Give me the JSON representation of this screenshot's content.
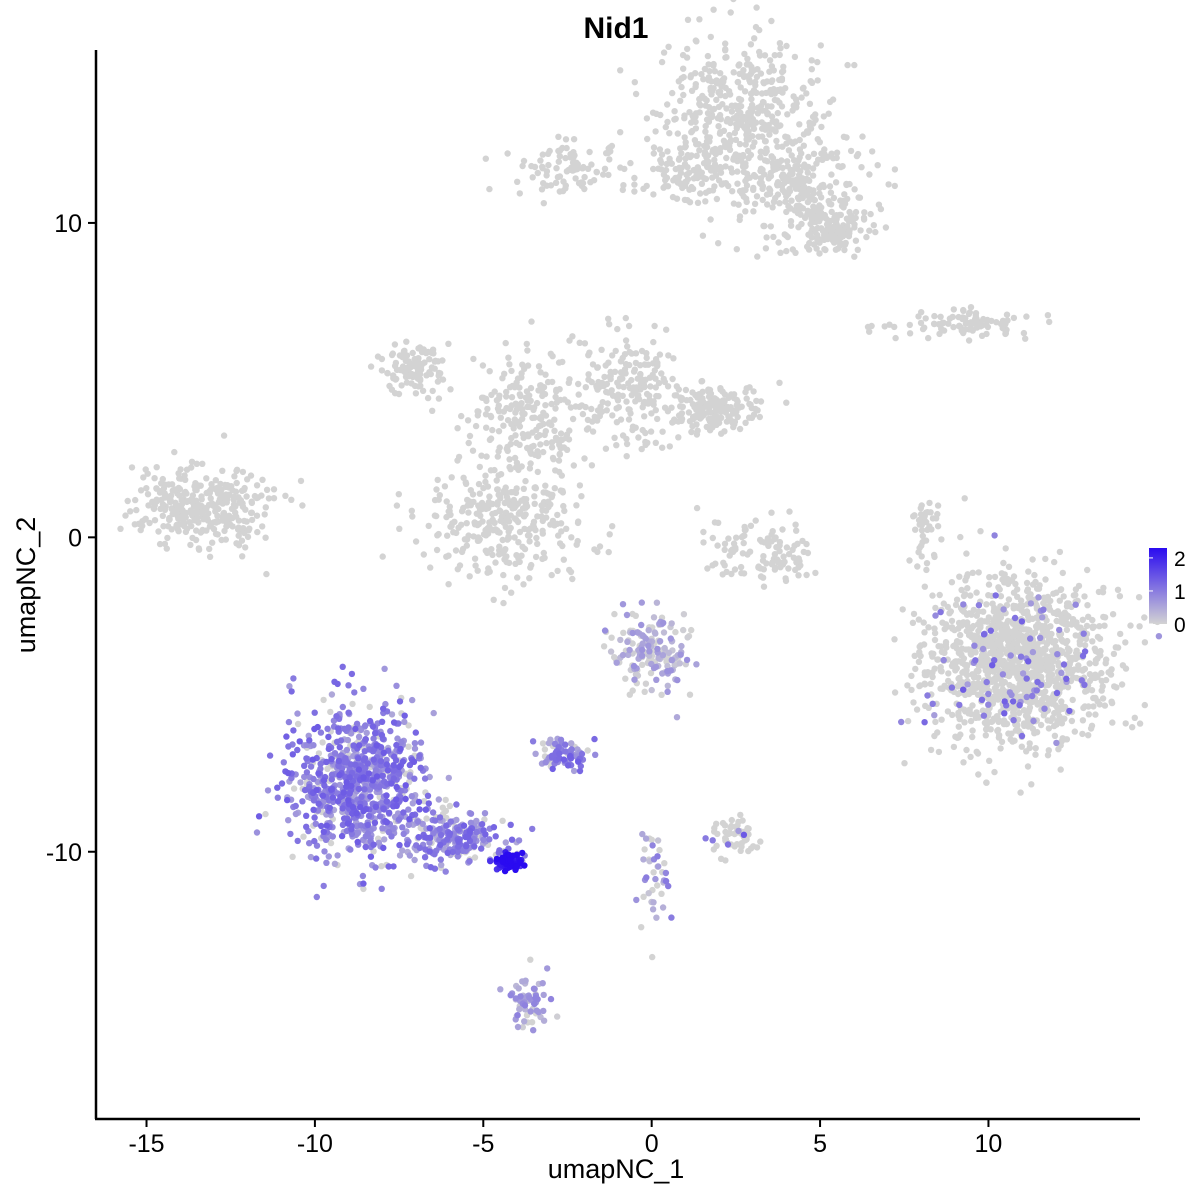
{
  "chart_data": {
    "type": "scatter",
    "title": "Nid1",
    "xlabel": "umapNC_1",
    "ylabel": "umapNC_2",
    "xlim": [
      -16.5,
      14.5
    ],
    "ylim": [
      -18.5,
      15.5
    ],
    "x_ticks": [
      -15,
      -10,
      -5,
      0,
      5,
      10
    ],
    "y_ticks": [
      -10,
      0,
      10
    ],
    "x_tick_labels": [
      "-15",
      "-10",
      "-5",
      "0",
      "5",
      "10"
    ],
    "y_tick_labels": [
      "-10",
      "0",
      "10"
    ],
    "grid": false,
    "legend": {
      "position": "right",
      "type": "colorbar",
      "min": 0,
      "max": 2.3,
      "ticks": [
        0,
        1,
        2
      ],
      "tick_labels": [
        "0",
        "1",
        "2"
      ],
      "low_color": "#d3d3d3",
      "high_color": "#2a0bf0"
    },
    "clusters": [
      {
        "name": "top-right-large",
        "cx": 2.7,
        "cy": 13.4,
        "sx": 1.2,
        "sy": 1.2,
        "n": 450,
        "expr": 0
      },
      {
        "name": "top-right-arm",
        "cx": 4.5,
        "cy": 11.0,
        "sx": 1.1,
        "sy": 0.9,
        "n": 260,
        "expr": 0
      },
      {
        "name": "top-right-tip",
        "cx": 5.5,
        "cy": 9.8,
        "sx": 0.45,
        "sy": 0.35,
        "n": 110,
        "expr": 0
      },
      {
        "name": "top-mid-arm",
        "cx": 1.2,
        "cy": 11.6,
        "sx": 0.9,
        "sy": 0.5,
        "n": 120,
        "expr": 0
      },
      {
        "name": "top-left-small",
        "cx": -2.5,
        "cy": 11.7,
        "sx": 0.7,
        "sy": 0.4,
        "n": 90,
        "expr": 0
      },
      {
        "name": "right-strip",
        "cx": 9.2,
        "cy": 6.8,
        "sx": 1.0,
        "sy": 0.2,
        "n": 90,
        "expr": 0
      },
      {
        "name": "left-blob",
        "cx": -13.4,
        "cy": 1.0,
        "sx": 1.0,
        "sy": 0.65,
        "n": 340,
        "expr": 0
      },
      {
        "name": "mid-left-arm",
        "cx": -7.0,
        "cy": 5.4,
        "sx": 0.5,
        "sy": 0.4,
        "n": 110,
        "expr": 0
      },
      {
        "name": "mid-center",
        "cx": -3.8,
        "cy": 3.8,
        "sx": 0.9,
        "sy": 1.2,
        "n": 230,
        "expr": 0
      },
      {
        "name": "mid-right-arm",
        "cx": -0.6,
        "cy": 4.8,
        "sx": 0.8,
        "sy": 0.9,
        "n": 200,
        "expr": 0
      },
      {
        "name": "mid-right-end",
        "cx": 1.9,
        "cy": 4.1,
        "sx": 0.6,
        "sy": 0.4,
        "n": 160,
        "expr": 0
      },
      {
        "name": "mid-bottom-lobe",
        "cx": -4.4,
        "cy": 0.5,
        "sx": 1.3,
        "sy": 0.9,
        "n": 300,
        "expr": 0
      },
      {
        "name": "center-small",
        "cx": 3.3,
        "cy": -0.4,
        "sx": 0.8,
        "sy": 0.5,
        "n": 110,
        "expr": 0
      },
      {
        "name": "center-bottom",
        "cx": 0.0,
        "cy": -3.6,
        "sx": 0.6,
        "sy": 0.7,
        "n": 170,
        "expr": 0.35
      },
      {
        "name": "right-large-blob",
        "cx": 10.9,
        "cy": -4.0,
        "sx": 1.35,
        "sy": 1.3,
        "n": 1350,
        "expr": 0.02
      },
      {
        "name": "right-small-strip",
        "cx": 8.1,
        "cy": 0.3,
        "sx": 0.2,
        "sy": 0.6,
        "n": 40,
        "expr": 0
      },
      {
        "name": "bottom-left-triangle",
        "cx": -8.7,
        "cy": -7.8,
        "sx": 1.0,
        "sy": 1.2,
        "n": 850,
        "expr": 0.95
      },
      {
        "name": "bottom-left-tail",
        "cx": -5.9,
        "cy": -9.5,
        "sx": 0.8,
        "sy": 0.4,
        "n": 230,
        "expr": 0.9
      },
      {
        "name": "bottom-left-tip",
        "cx": -4.2,
        "cy": -10.3,
        "sx": 0.2,
        "sy": 0.15,
        "n": 85,
        "expr": 2.2
      },
      {
        "name": "center-lower-left",
        "cx": -2.6,
        "cy": -6.9,
        "sx": 0.35,
        "sy": 0.25,
        "n": 80,
        "expr": 0.9
      },
      {
        "name": "bottom-small-right",
        "cx": 2.5,
        "cy": -9.5,
        "sx": 0.35,
        "sy": 0.3,
        "n": 60,
        "expr": 0.02
      },
      {
        "name": "bottom-center",
        "cx": -3.6,
        "cy": -14.8,
        "sx": 0.3,
        "sy": 0.5,
        "n": 60,
        "expr": 0.5
      },
      {
        "name": "bottom-strip-mid",
        "cx": 0.1,
        "cy": -10.7,
        "sx": 0.25,
        "sy": 0.8,
        "n": 40,
        "expr": 0.6
      }
    ]
  }
}
